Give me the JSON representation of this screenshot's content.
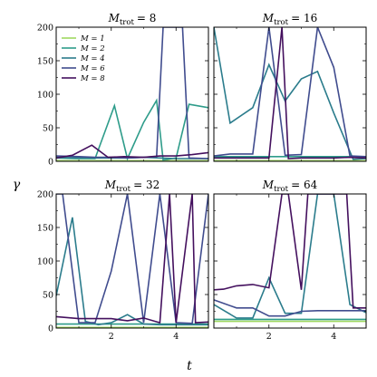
{
  "chart_data": {
    "type": "line",
    "xlabel": "t",
    "ylabel": "γ",
    "xlim": [
      0.3,
      5.0
    ],
    "ylim": [
      0,
      200
    ],
    "xticks": [
      2,
      4
    ],
    "yticks": [
      0,
      50,
      100,
      150,
      200
    ],
    "series_styles": [
      {
        "name": "M = 1",
        "color": "#9fd860"
      },
      {
        "name": "M = 2",
        "color": "#2e9c8a"
      },
      {
        "name": "M = 4",
        "color": "#2b7c8c"
      },
      {
        "name": "M = 6",
        "color": "#404c8e"
      },
      {
        "name": "M = 8",
        "color": "#44105e"
      }
    ],
    "legend": {
      "location": "top-left",
      "entries": [
        {
          "label": "M = 1",
          "color": "#9fd860"
        },
        {
          "label": "M = 2",
          "color": "#2e9c8a"
        },
        {
          "label": "M = 4",
          "color": "#2b7c8c"
        },
        {
          "label": "M = 6",
          "color": "#404c8e"
        },
        {
          "label": "M = 8",
          "color": "#44105e"
        }
      ]
    },
    "panels": [
      {
        "title_prefix": "M",
        "title_sub": "trot",
        "title_value": "= 8",
        "series": [
          {
            "name": "M = 1",
            "x": [
              0.3,
              5.0
            ],
            "y": [
              1,
              1
            ]
          },
          {
            "name": "M = 2",
            "x": [
              0.3,
              0.9,
              1.5,
              2.1,
              2.5,
              3.0,
              3.4,
              3.6,
              4.0,
              4.4,
              5.0
            ],
            "y": [
              5,
              4,
              4,
              83,
              4,
              58,
              91,
              2,
              5,
              85,
              80
            ]
          },
          {
            "name": "M = 4",
            "x": [
              0.3,
              1.0,
              1.5,
              2.0,
              2.5,
              3.0,
              3.5,
              4.0,
              5.0
            ],
            "y": [
              6,
              5,
              5,
              5,
              5,
              6,
              5,
              4,
              4
            ]
          },
          {
            "name": "M = 6",
            "x": [
              0.3,
              1.0,
              1.5,
              2.0,
              2.5,
              3.0,
              3.4,
              3.6,
              4.0,
              4.2,
              4.4,
              5.0
            ],
            "y": [
              8,
              7,
              6,
              6,
              5,
              6,
              7,
              200,
              200,
              200,
              5,
              4
            ]
          },
          {
            "name": "M = 8",
            "x": [
              0.3,
              0.8,
              1.4,
              1.9,
              2.4,
              3.0,
              3.5,
              4.0,
              4.5,
              5.0
            ],
            "y": [
              5,
              9,
              24,
              6,
              7,
              6,
              8,
              8,
              10,
              13
            ]
          }
        ]
      },
      {
        "title_prefix": "M",
        "title_sub": "trot",
        "title_value": "= 16",
        "series": [
          {
            "name": "M = 1",
            "x": [
              0.3,
              5.0
            ],
            "y": [
              1,
              1
            ]
          },
          {
            "name": "M = 2",
            "x": [
              0.3,
              5.0
            ],
            "y": [
              7,
              7
            ]
          },
          {
            "name": "M = 4",
            "x": [
              0.3,
              0.8,
              1.5,
              2.0,
              2.5,
              3.0,
              3.5,
              4.0,
              4.6,
              5.0
            ],
            "y": [
              200,
              57,
              80,
              144,
              90,
              123,
              134,
              72,
              3,
              4
            ]
          },
          {
            "name": "M = 6",
            "x": [
              0.3,
              0.8,
              1.5,
              2.0,
              2.5,
              3.0,
              3.5,
              4.0,
              4.5,
              5.0
            ],
            "y": [
              8,
              11,
              11,
              200,
              9,
              10,
              200,
              140,
              8,
              7
            ]
          },
          {
            "name": "M = 8",
            "x": [
              0.3,
              1.0,
              1.5,
              2.0,
              2.4,
              2.6,
              3.0,
              3.5,
              4.0,
              4.5,
              5.0
            ],
            "y": [
              5,
              5,
              5,
              5,
              200,
              4,
              5,
              5,
              5,
              6,
              5
            ]
          }
        ]
      },
      {
        "title_prefix": "M",
        "title_sub": "trot",
        "title_value": "= 32",
        "series": [
          {
            "name": "M = 1",
            "x": [
              0.3,
              5.0
            ],
            "y": [
              1,
              1
            ]
          },
          {
            "name": "M = 2",
            "x": [
              0.3,
              5.0
            ],
            "y": [
              6,
              6
            ]
          },
          {
            "name": "M = 4",
            "x": [
              0.3,
              0.8,
              1.2,
              1.6,
              2.0,
              2.5,
              3.0,
              3.5,
              4.0,
              4.5,
              5.0
            ],
            "y": [
              48,
              165,
              10,
              5,
              8,
              20,
              6,
              5,
              5,
              5,
              5
            ]
          },
          {
            "name": "M = 6",
            "x": [
              0.3,
              0.5,
              1.0,
              1.5,
              2.0,
              2.5,
              3.0,
              3.5,
              4.0,
              4.5,
              5.0
            ],
            "y": [
              200,
              200,
              8,
              8,
              85,
              200,
              8,
              200,
              8,
              7,
              200
            ]
          },
          {
            "name": "M = 8",
            "x": [
              0.3,
              1.0,
              1.5,
              2.0,
              2.5,
              3.0,
              3.5,
              3.8,
              4.0,
              4.5,
              4.6,
              5.0
            ],
            "y": [
              17,
              14,
              14,
              14,
              11,
              15,
              8,
              200,
              8,
              200,
              8,
              9
            ]
          }
        ]
      },
      {
        "title_prefix": "M",
        "title_sub": "trot",
        "title_value": "= 64",
        "series": [
          {
            "name": "M = 1",
            "x": [
              0.3,
              5.0
            ],
            "y": [
              10,
              10
            ]
          },
          {
            "name": "M = 2",
            "x": [
              0.3,
              5.0
            ],
            "y": [
              13,
              13
            ]
          },
          {
            "name": "M = 4",
            "x": [
              0.3,
              1.0,
              1.5,
              2.0,
              2.5,
              3.0,
              3.5,
              3.8,
              4.0,
              4.5,
              5.0
            ],
            "y": [
              35,
              15,
              15,
              75,
              22,
              22,
              200,
              200,
              200,
              35,
              23
            ]
          },
          {
            "name": "M = 6",
            "x": [
              0.3,
              1.0,
              1.5,
              2.0,
              2.5,
              3.0,
              3.5,
              4.0,
              4.5,
              5.0
            ],
            "y": [
              42,
              30,
              30,
              18,
              18,
              25,
              26,
              26,
              26,
              26
            ]
          },
          {
            "name": "M = 8",
            "x": [
              0.3,
              0.6,
              1.0,
              1.5,
              2.0,
              2.4,
              2.6,
              3.0,
              3.2,
              3.5,
              4.0,
              4.4,
              4.6,
              5.0
            ],
            "y": [
              57,
              58,
              63,
              65,
              60,
              200,
              200,
              57,
              200,
              200,
              200,
              200,
              30,
              30
            ]
          }
        ]
      }
    ]
  }
}
